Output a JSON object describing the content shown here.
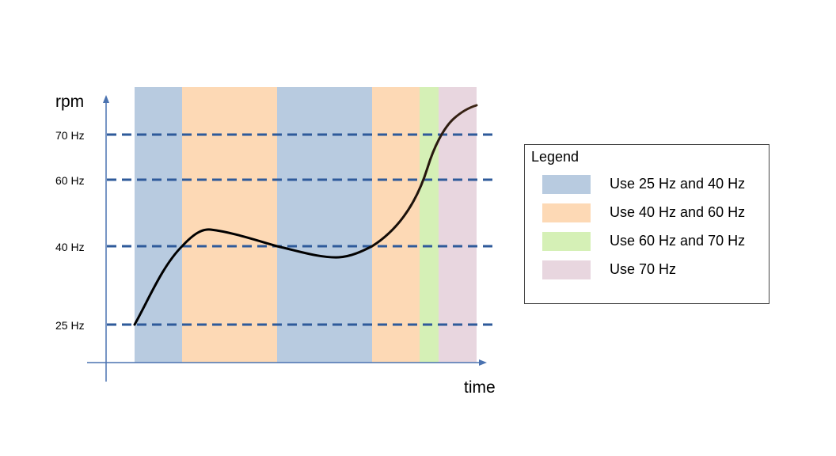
{
  "axes": {
    "y_label": "rpm",
    "x_label": "time",
    "y_ticks": [
      {
        "label": "70 Hz",
        "value": 70
      },
      {
        "label": "60 Hz",
        "value": 60
      },
      {
        "label": "40 Hz",
        "value": 40
      },
      {
        "label": "25 Hz",
        "value": 25
      }
    ]
  },
  "colors": {
    "blue": "#b8cbe0",
    "orange": "#fdd9b5",
    "green": "#d5f0b6",
    "pink": "#e8d6df",
    "threshold_line": "#2e5a9a",
    "axis": "#4a72b0",
    "curve_start": "#000000",
    "curve_end": "#3d2616"
  },
  "bands": [
    {
      "color": "blue"
    },
    {
      "color": "orange"
    },
    {
      "color": "blue"
    },
    {
      "color": "orange"
    },
    {
      "color": "green"
    },
    {
      "color": "pink"
    }
  ],
  "legend": {
    "title": "Legend",
    "items": [
      {
        "label": "Use 25 Hz and 40 Hz",
        "color": "#b8cbe0"
      },
      {
        "label": "Use 40 Hz and 60 Hz",
        "color": "#fdd9b5"
      },
      {
        "label": "Use 60 Hz and 70 Hz",
        "color": "#d5f0b6"
      },
      {
        "label": "Use 70 Hz",
        "color": "#e8d6df"
      }
    ]
  }
}
